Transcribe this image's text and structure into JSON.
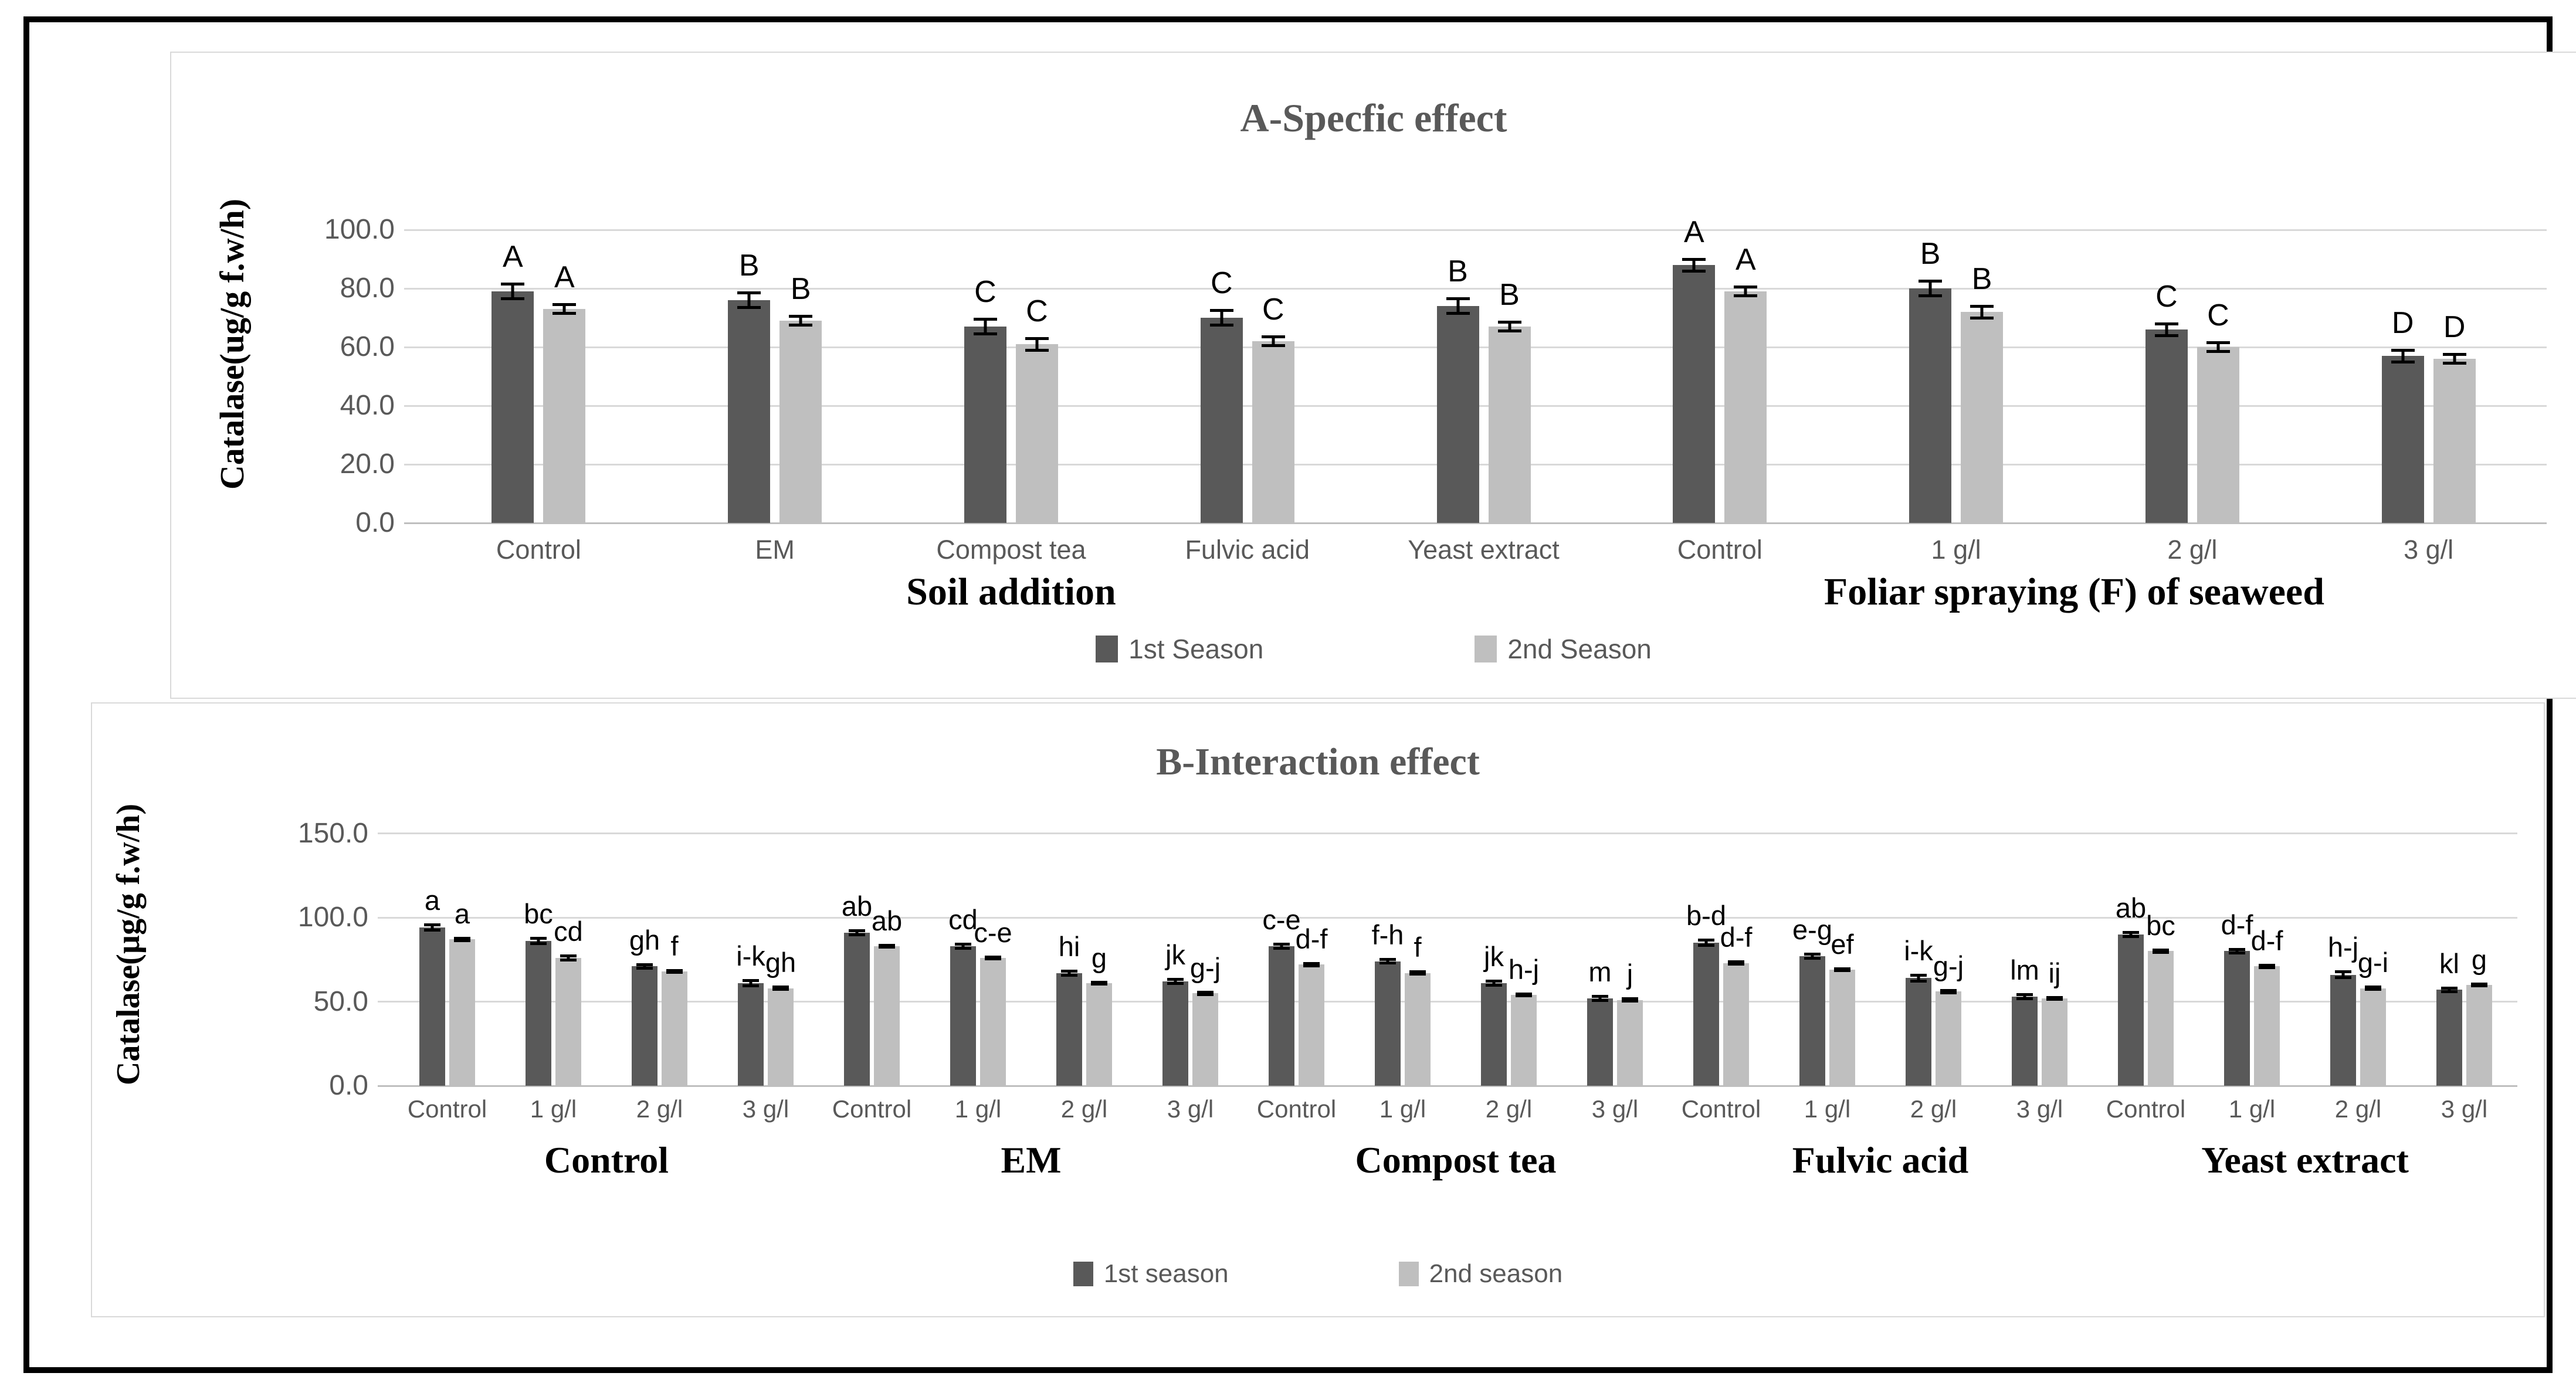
{
  "figure": {
    "description": "Two stacked grayscale Excel bar charts of catalase activity",
    "colors": {
      "series1": "#595959",
      "series2": "#bfbfbf",
      "gridline": "#d9d9d9",
      "title_text": "#595959",
      "tick_text": "#595959"
    }
  },
  "chart_data": [
    {
      "type": "bar",
      "title": "A-Specfic effect",
      "ylabel": "Catalase(ug/g f.w/h)",
      "ylim": [
        0,
        100
      ],
      "grid": true,
      "legend_position": "bottom",
      "tick_values": [
        100,
        80,
        60,
        40,
        20,
        0
      ],
      "tick_labels": [
        "100.0",
        "80.0",
        "60.0",
        "40.0",
        "20.0",
        "0.0"
      ],
      "categories": [
        "Control",
        "EM",
        "Compost tea",
        "Fulvic acid",
        "Yeast extract",
        "Control",
        "1 g/l",
        "2 g/l",
        "3 g/l"
      ],
      "group_spans": [
        {
          "label": "Soil addition",
          "from": 0,
          "to": 4
        },
        {
          "label": "Foliar spraying (F) of seaweed",
          "from": 5,
          "to": 8
        }
      ],
      "series": [
        {
          "name": "1st Season",
          "color": "#595959",
          "values": [
            79,
            76,
            67,
            70,
            74,
            88,
            80,
            66,
            57
          ],
          "errors": [
            3,
            3,
            3,
            3,
            3,
            2.5,
            3,
            2.5,
            2.5
          ],
          "letters": [
            "A",
            "B",
            "C",
            "C",
            "B",
            "A",
            "B",
            "C",
            "D"
          ]
        },
        {
          "name": "2nd Season",
          "color": "#bfbfbf",
          "values": [
            73,
            69,
            61,
            62,
            67,
            79,
            72,
            60,
            56
          ],
          "errors": [
            2,
            2,
            2.5,
            2,
            2,
            2,
            2.5,
            2,
            2
          ],
          "letters": [
            "A",
            "B",
            "C",
            "C",
            "B",
            "A",
            "B",
            "C",
            "D"
          ]
        }
      ],
      "legend": [
        "1st Season",
        "2nd Season"
      ]
    },
    {
      "type": "bar",
      "title": "B-Interaction effect",
      "ylabel": "Catalase(µg/g f.w/h)",
      "ylim": [
        0,
        150
      ],
      "grid": true,
      "legend_position": "bottom",
      "tick_values": [
        150,
        100,
        50,
        0
      ],
      "tick_labels": [
        "150.0",
        "100.0",
        "50.0",
        "0.0"
      ],
      "categories": [
        "Control",
        "1 g/l",
        "2 g/l",
        "3 g/l",
        "Control",
        "1 g/l",
        "2 g/l",
        "3 g/l",
        "Control",
        "1 g/l",
        "2 g/l",
        "3 g/l",
        "Control",
        "1 g/l",
        "2 g/l",
        "3 g/l",
        "Control",
        "1 g/l",
        "2 g/l",
        "3 g/l"
      ],
      "group_spans": [
        {
          "label": "Control",
          "from": 0,
          "to": 3
        },
        {
          "label": "EM",
          "from": 4,
          "to": 7
        },
        {
          "label": "Compost tea",
          "from": 8,
          "to": 11
        },
        {
          "label": "Fulvic acid",
          "from": 12,
          "to": 15
        },
        {
          "label": "Yeast extract",
          "from": 16,
          "to": 19
        }
      ],
      "series": [
        {
          "name": "1st season",
          "color": "#595959",
          "values": [
            94,
            86,
            71,
            61,
            91,
            83,
            67,
            62,
            83,
            74,
            61,
            52,
            85,
            77,
            64,
            53,
            90,
            80,
            66,
            57
          ],
          "errors": [
            2.5,
            2.5,
            2,
            2.5,
            2,
            2,
            2,
            2,
            2,
            2,
            2,
            2,
            2.5,
            2,
            2.5,
            2,
            2,
            2,
            2.5,
            2
          ],
          "letters": [
            "a",
            "bc",
            "gh",
            "i-k",
            "ab",
            "cd",
            "hi",
            "jk",
            "c-e",
            "f-h",
            "jk",
            "m",
            "b-d",
            "e-g",
            "i-k",
            "lm",
            "ab",
            "d-f",
            "h-j",
            "kl"
          ]
        },
        {
          "name": "2nd season",
          "color": "#bfbfbf",
          "values": [
            87,
            76,
            68,
            58,
            83,
            76,
            61,
            55,
            72,
            67,
            54,
            51,
            73,
            69,
            56,
            52,
            80,
            71,
            58,
            60
          ],
          "errors": [
            1.5,
            2,
            1.5,
            1.5,
            1.5,
            1.5,
            1.5,
            1.5,
            1.5,
            1.5,
            1.5,
            1.5,
            1.5,
            1.5,
            1.5,
            1.5,
            1.5,
            1.5,
            1.5,
            1.5
          ],
          "letters": [
            "a",
            "cd",
            "f",
            "gh",
            "ab",
            "c-e",
            "g",
            "g-j",
            "d-f",
            "f",
            "h-j",
            "j",
            "d-f",
            "ef",
            "g-j",
            "ij",
            "bc",
            "d-f",
            "g-i",
            "g"
          ]
        }
      ],
      "legend": [
        "1st season",
        "2nd season"
      ]
    }
  ]
}
